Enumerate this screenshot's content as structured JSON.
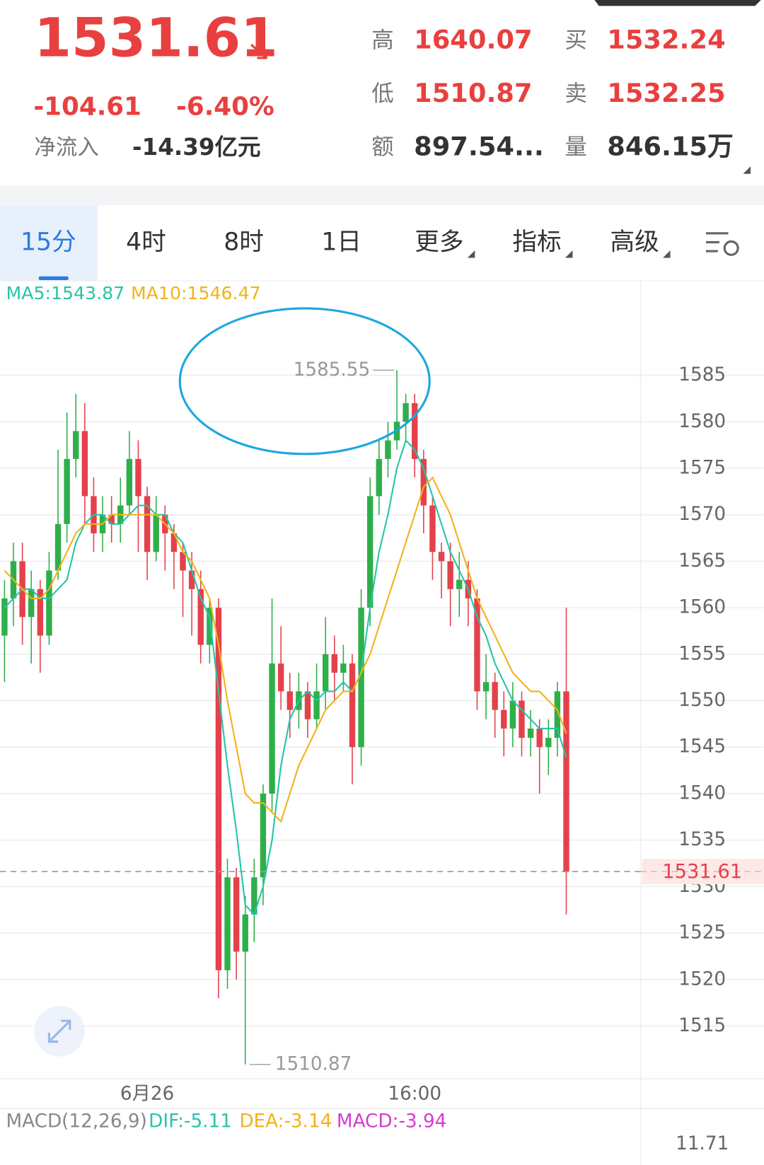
{
  "header": {
    "price": "1531.61",
    "change": "-104.61",
    "change_pct": "-6.40%",
    "netflow_label": "净流入",
    "netflow": "-14.39亿元",
    "stats": [
      {
        "label": "高",
        "value": "1640.07"
      },
      {
        "label": "买",
        "value": "1532.24"
      },
      {
        "label": "低",
        "value": "1510.87"
      },
      {
        "label": "卖",
        "value": "1532.25"
      },
      {
        "label": "额",
        "value": "897.54..."
      },
      {
        "label": "量",
        "value": "846.15万"
      }
    ]
  },
  "tabs": [
    "15分",
    "4时",
    "8时",
    "1日",
    "更多",
    "指标",
    "高级"
  ],
  "chart_data": {
    "type": "candlestick",
    "categories": [
      null,
      null,
      null,
      null,
      null,
      null,
      null,
      null,
      null,
      null,
      null,
      null,
      null,
      null,
      null,
      null,
      "6月26",
      null,
      null,
      null,
      null,
      null,
      null,
      null,
      null,
      null,
      null,
      null,
      null,
      null,
      null,
      null,
      null,
      null,
      null,
      null,
      null,
      null,
      null,
      null,
      null,
      null,
      null,
      null,
      null,
      null,
      "16:00",
      null,
      null,
      null,
      null,
      null,
      null,
      null,
      null,
      null,
      null,
      null,
      null,
      null,
      null,
      null,
      null,
      null
    ],
    "open": [
      1557,
      1561,
      1565,
      1559,
      1562,
      1557,
      1564,
      1569,
      1576,
      1579,
      1572,
      1568,
      1570,
      1569,
      1571,
      1576,
      1572,
      1566,
      1570,
      1568,
      1566,
      1564,
      1562,
      1556,
      1560,
      1521,
      1531,
      1523,
      1527,
      1531,
      1540,
      1554,
      1551,
      1549,
      1551,
      1548,
      1551,
      1555,
      1553,
      1554,
      1545,
      1560,
      1572,
      1576,
      1578,
      1580,
      1582,
      1576,
      1571,
      1566,
      1565,
      1562,
      1563,
      1561,
      1551,
      1552,
      1549,
      1547,
      1550,
      1546,
      1547,
      1545,
      1546,
      1551
    ],
    "high": [
      1563,
      1567,
      1567,
      1564,
      1563,
      1566,
      1577,
      1581,
      1583,
      1582,
      1574,
      1572,
      1572,
      1574,
      1579,
      1578,
      1573,
      1572,
      1571,
      1569,
      1567,
      1566,
      1564,
      1561,
      1561,
      1533,
      1532,
      1529,
      1533,
      1541,
      1561,
      1558,
      1553,
      1553,
      1552,
      1554,
      1559,
      1557,
      1556,
      1555,
      1562,
      1574,
      1578,
      1580,
      1585.55,
      1583,
      1583,
      1577,
      1572,
      1567,
      1567,
      1566,
      1565,
      1562,
      1555,
      1553,
      1551,
      1552,
      1551,
      1549,
      1548,
      1548,
      1552,
      1560
    ],
    "low": [
      1552,
      1558,
      1556,
      1554,
      1553,
      1556,
      1563,
      1567,
      1574,
      1569,
      1566,
      1566,
      1567,
      1567,
      1570,
      1566,
      1563,
      1565,
      1564,
      1562,
      1559,
      1557,
      1554,
      1554,
      1518,
      1519,
      1520,
      1510.87,
      1524,
      1528,
      1538,
      1549,
      1546,
      1547,
      1546,
      1547,
      1549,
      1550,
      1551,
      1541,
      1543,
      1558,
      1570,
      1574,
      1577,
      1578,
      1574,
      1568,
      1563,
      1561,
      1558,
      1559,
      1558,
      1549,
      1548,
      1546,
      1544,
      1545,
      1544,
      1544,
      1540,
      1542,
      1544,
      1527
    ],
    "close": [
      1561,
      1565,
      1559,
      1562,
      1557,
      1564,
      1569,
      1576,
      1579,
      1572,
      1568,
      1570,
      1569,
      1571,
      1576,
      1572,
      1566,
      1570,
      1568,
      1566,
      1564,
      1562,
      1556,
      1560,
      1521,
      1531,
      1523,
      1527,
      1531,
      1540,
      1554,
      1551,
      1549,
      1551,
      1548,
      1551,
      1555,
      1553,
      1554,
      1545,
      1560,
      1572,
      1576,
      1578,
      1580,
      1582,
      1576,
      1571,
      1566,
      1565,
      1562,
      1563,
      1561,
      1551,
      1552,
      1549,
      1547,
      1550,
      1546,
      1547,
      1545,
      1546,
      1551,
      1531.61
    ],
    "up_color": "#2eaf4a",
    "down_color": "#e4414b",
    "series": [
      {
        "name": "MA5",
        "label": "MA5:1543.87",
        "color": "#27c4a8",
        "values": [
          1560,
          1561,
          1562,
          1562,
          1561,
          1561,
          1562,
          1563,
          1567,
          1569,
          1570,
          1570,
          1569,
          1569,
          1570,
          1571,
          1571,
          1570,
          1570,
          1568,
          1567,
          1564,
          1561,
          1559,
          1551,
          1543,
          1536,
          1528,
          1527,
          1530,
          1535,
          1543,
          1548,
          1550,
          1551,
          1550,
          1551,
          1551,
          1552,
          1551,
          1553,
          1560,
          1566,
          1570,
          1575,
          1578,
          1577,
          1575,
          1572,
          1569,
          1566,
          1564,
          1562,
          1559,
          1557,
          1554,
          1552,
          1550,
          1549,
          1548,
          1547,
          1547,
          1547,
          1543.87
        ]
      },
      {
        "name": "MA10",
        "label": "MA10:1546.47",
        "color": "#f3b21a",
        "values": [
          1564,
          1563,
          1562,
          1561,
          1561,
          1562,
          1564,
          1566,
          1568,
          1569,
          1569,
          1569,
          1570,
          1570,
          1570,
          1570,
          1570,
          1570,
          1569,
          1568,
          1566,
          1565,
          1563,
          1561,
          1556,
          1550,
          1545,
          1540,
          1539,
          1539,
          1538,
          1537,
          1540,
          1543,
          1545,
          1547,
          1549,
          1550,
          1551,
          1551,
          1553,
          1555,
          1558,
          1561,
          1564,
          1567,
          1570,
          1573,
          1574,
          1572,
          1570,
          1567,
          1564,
          1561,
          1559,
          1557,
          1555,
          1553,
          1552,
          1551,
          1551,
          1550,
          1549,
          1546.47
        ]
      }
    ],
    "ylim": [
      1509,
      1595
    ],
    "yticks": [
      1515,
      1520,
      1525,
      1530,
      1535,
      1540,
      1545,
      1550,
      1555,
      1560,
      1565,
      1570,
      1575,
      1580,
      1585
    ],
    "grid": true,
    "max_annotation": "1585.55",
    "min_annotation": "1510.87",
    "macd": {
      "title": "MACD(12,26,9)",
      "dif": "DIF:-5.11",
      "dea": "DEA:-3.14",
      "macd": "MACD:-3.94",
      "axis_label": "11.71"
    }
  }
}
